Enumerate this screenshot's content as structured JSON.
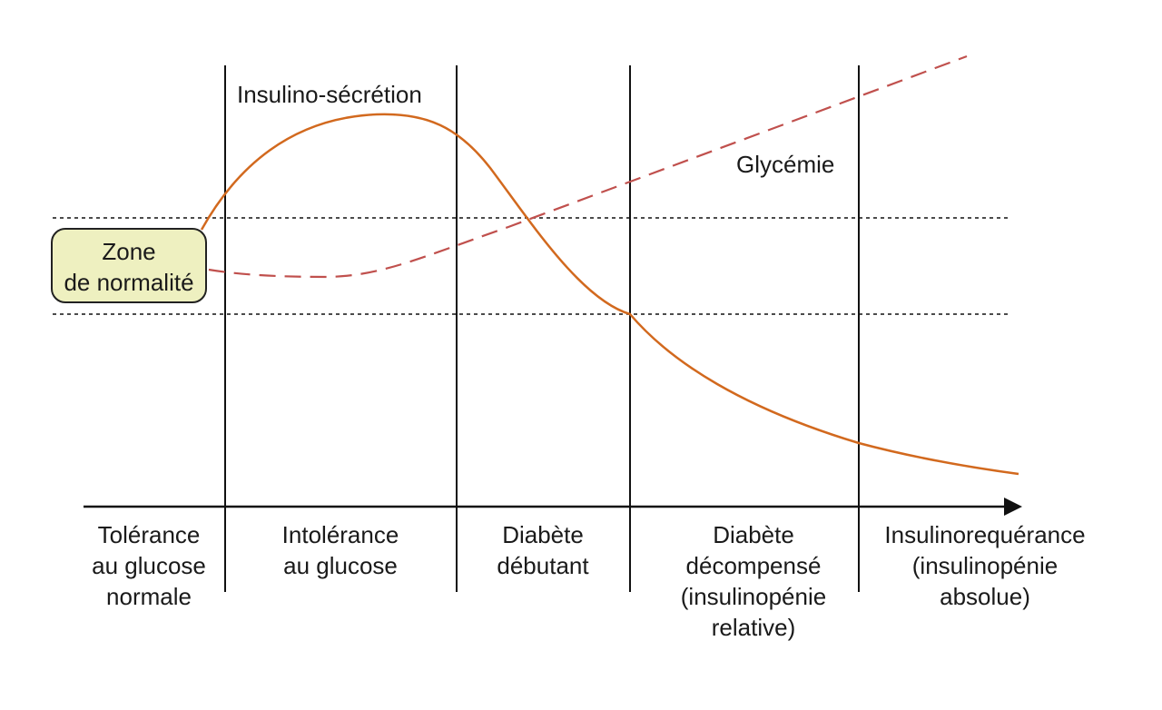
{
  "colors": {
    "insulin_curve": "#d2691e",
    "glycemia_curve": "#c0504d",
    "zone_fill": "#eef0c0",
    "line": "#111111"
  },
  "curve_labels": {
    "insulin": "Insulino-sécrétion",
    "glycemia": "Glycémie"
  },
  "zone": {
    "line1": "Zone",
    "line2": "de normalité"
  },
  "stages": [
    {
      "lines": [
        "Tolérance",
        "au glucose",
        "normale"
      ]
    },
    {
      "lines": [
        "Intolérance",
        "au glucose"
      ]
    },
    {
      "lines": [
        "Diabète",
        "débutant"
      ]
    },
    {
      "lines": [
        "Diabète",
        "décompensé",
        "(insulinopénie",
        "relative)"
      ]
    },
    {
      "lines": [
        "Insulinorequérance",
        "(insulinopénie",
        "absolue)"
      ]
    }
  ]
}
